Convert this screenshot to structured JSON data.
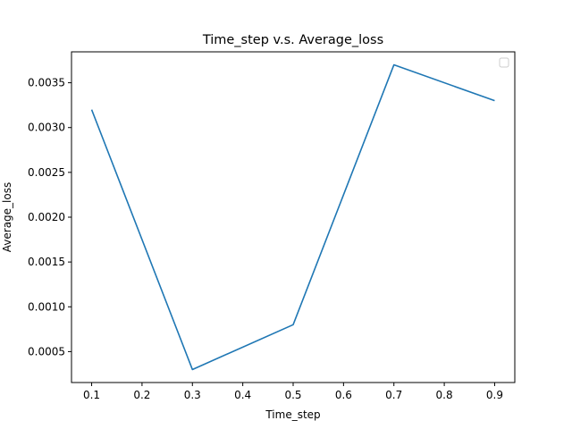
{
  "chart_data": {
    "type": "line",
    "title": "Time_step v.s. Average_loss",
    "xlabel": "Time_step",
    "ylabel": "Average_loss",
    "x": [
      0.1,
      0.3,
      0.5,
      0.7,
      0.9
    ],
    "series": [
      {
        "values": [
          0.0032,
          0.0003,
          0.0008,
          0.0037,
          0.0033
        ]
      }
    ],
    "xlim": [
      0.06,
      0.94
    ],
    "ylim": [
      0.000155,
      0.003845
    ],
    "xticks": [
      "0.1",
      "0.2",
      "0.3",
      "0.4",
      "0.5",
      "0.6",
      "0.7",
      "0.8",
      "0.9"
    ],
    "xtick_values": [
      0.1,
      0.2,
      0.3,
      0.4,
      0.5,
      0.6,
      0.7,
      0.8,
      0.9
    ],
    "yticks": [
      "0.0005",
      "0.0010",
      "0.0015",
      "0.0020",
      "0.0025",
      "0.0030",
      "0.0035"
    ],
    "ytick_values": [
      0.0005,
      0.001,
      0.0015,
      0.002,
      0.0025,
      0.003,
      0.0035
    ],
    "grid": false,
    "legend": {
      "placement": "top-right",
      "entries": []
    },
    "line_color": "#1f77b4"
  }
}
